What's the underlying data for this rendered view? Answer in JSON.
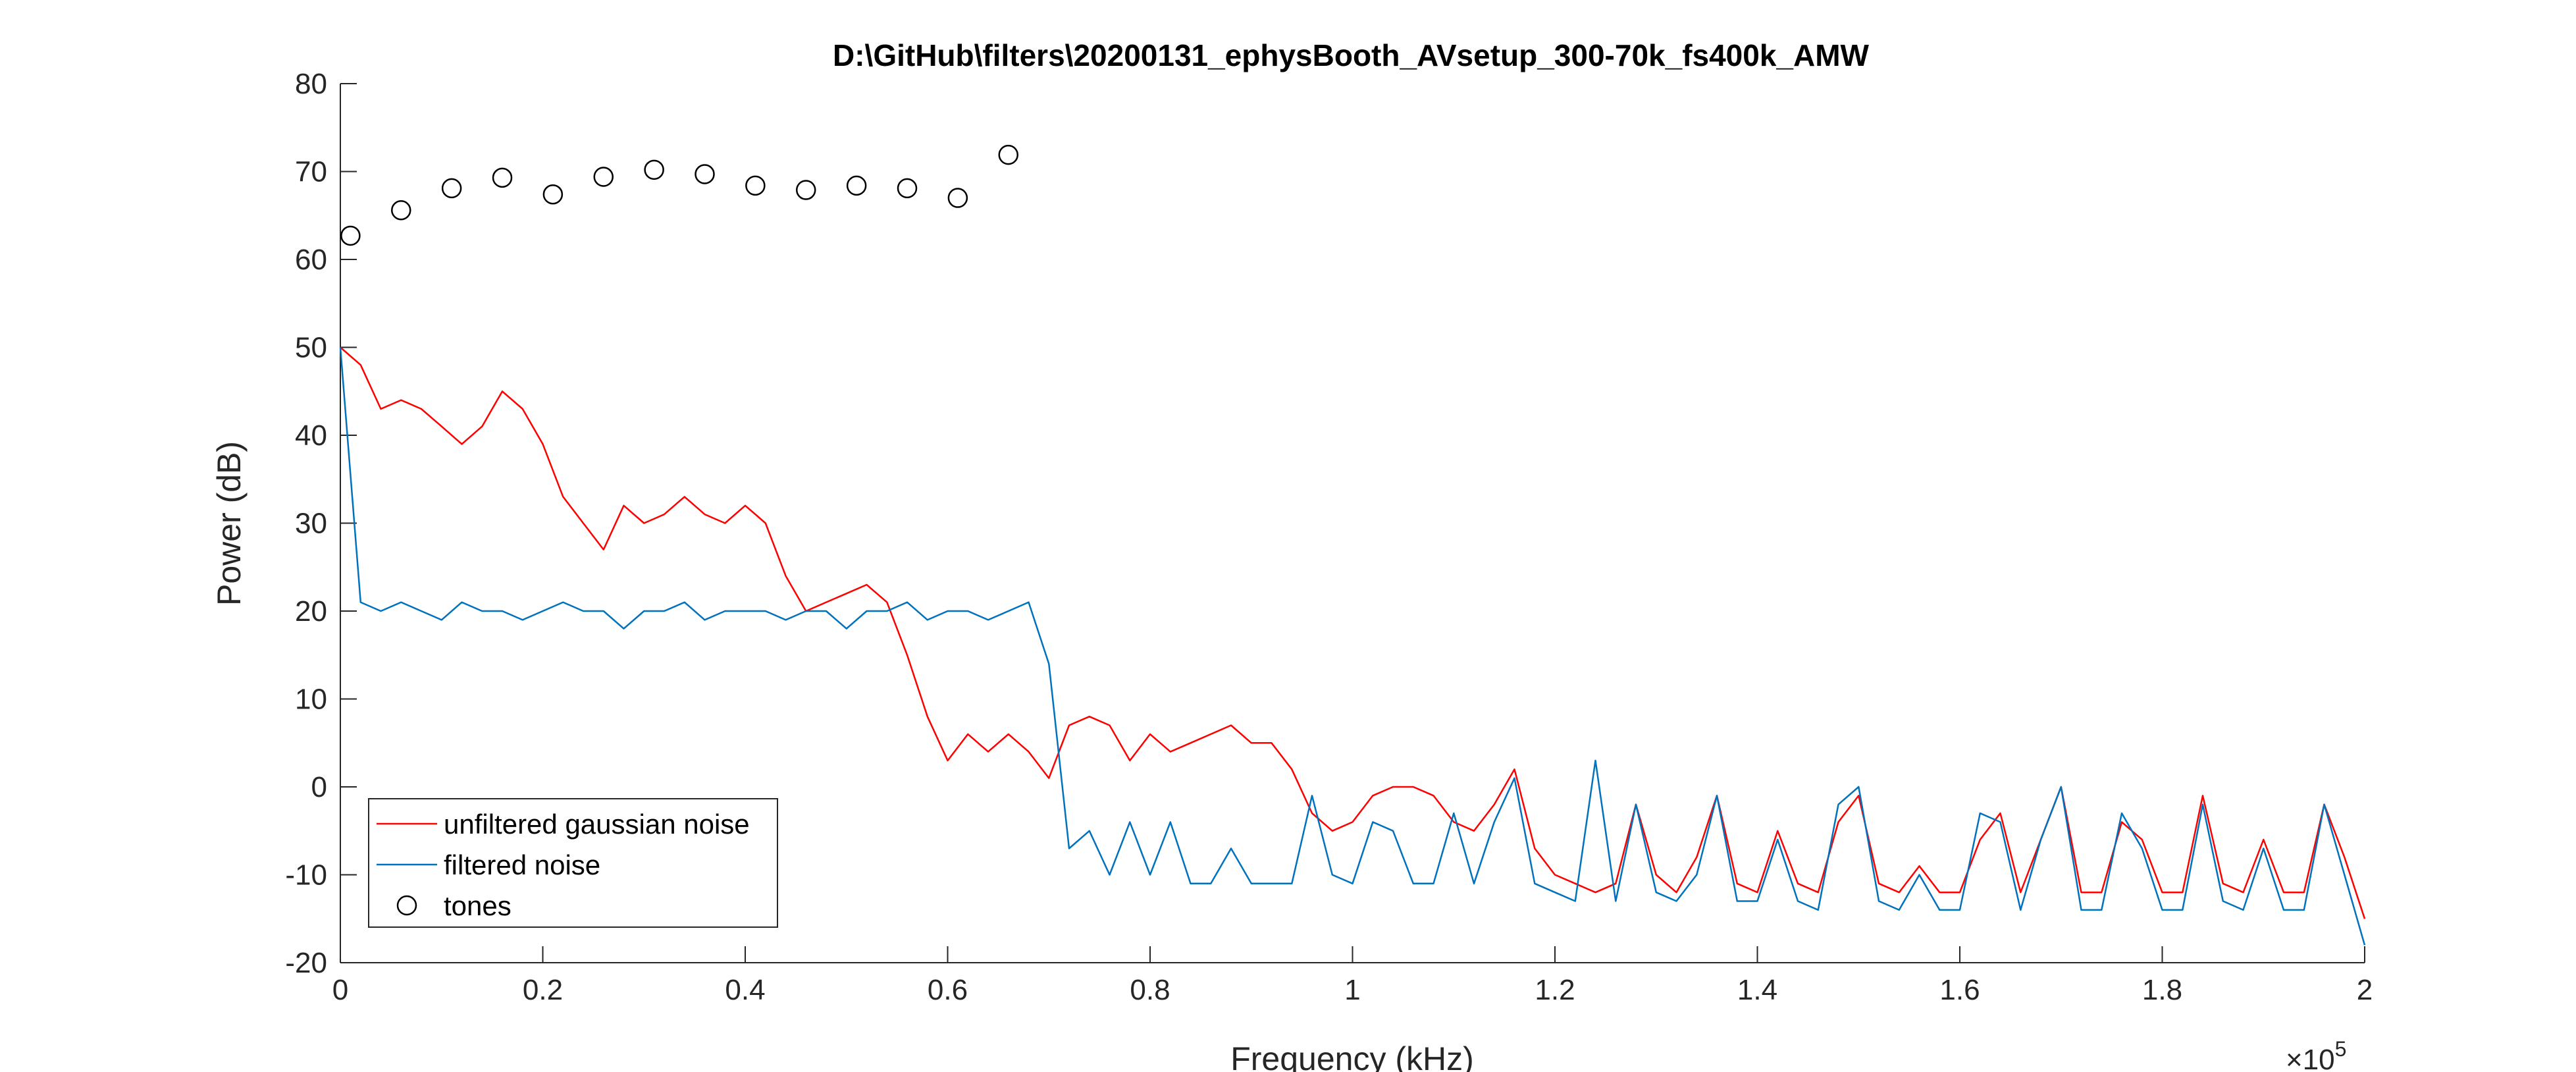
{
  "chart_data": {
    "type": "line",
    "title": "D:\\GitHub\\filters\\20200131_ephysBooth_AVsetup_300-70k_fs400k_AMW",
    "x_label": "Frequency (kHz)",
    "y_label": "Power (dB)",
    "x_exponent": {
      "base": "×10",
      "power": "5"
    },
    "xlim": [
      0,
      200000
    ],
    "ylim": [
      -20,
      80
    ],
    "xticks": [
      0,
      {
        "value": 20000,
        "label": "0.2"
      },
      {
        "value": 40000,
        "label": "0.4"
      },
      {
        "value": 60000,
        "label": "0.6"
      },
      {
        "value": 80000,
        "label": "0.8"
      },
      {
        "value": 100000,
        "label": "1"
      },
      {
        "value": 120000,
        "label": "1.2"
      },
      {
        "value": 140000,
        "label": "1.4"
      },
      {
        "value": 160000,
        "label": "1.6"
      },
      {
        "value": 180000,
        "label": "1.8"
      },
      {
        "value": 200000,
        "label": "2"
      }
    ],
    "yticks": [
      -20,
      -10,
      0,
      10,
      20,
      30,
      40,
      50,
      60,
      70,
      80
    ],
    "grid": false,
    "legend": "bottom-left",
    "series": [
      {
        "name": "unfiltered gaussian noise",
        "color": "#ff0000",
        "type": "line",
        "x": [
          0,
          2000,
          4000,
          6000,
          8000,
          10000,
          12000,
          14000,
          16000,
          18000,
          20000,
          22000,
          24000,
          26000,
          28000,
          30000,
          32000,
          34000,
          36000,
          38000,
          40000,
          42000,
          44000,
          46000,
          48000,
          50000,
          52000,
          54000,
          56000,
          58000,
          60000,
          62000,
          64000,
          66000,
          68000,
          70000,
          72000,
          74000,
          76000,
          78000,
          80000,
          82000,
          84000,
          86000,
          88000,
          90000,
          92000,
          94000,
          96000,
          98000,
          100000,
          102000,
          104000,
          106000,
          108000,
          110000,
          112000,
          114000,
          116000,
          118000,
          120000,
          122000,
          124000,
          126000,
          128000,
          130000,
          132000,
          134000,
          136000,
          138000,
          140000,
          142000,
          144000,
          146000,
          148000,
          150000,
          152000,
          154000,
          156000,
          158000,
          160000,
          162000,
          164000,
          166000,
          168000,
          170000,
          172000,
          174000,
          176000,
          178000,
          180000,
          182000,
          184000,
          186000,
          188000,
          190000,
          192000,
          194000,
          196000,
          198000,
          200000
        ],
        "values": [
          50,
          48,
          43,
          44,
          43,
          41,
          39,
          41,
          45,
          43,
          39,
          33,
          30,
          27,
          32,
          30,
          31,
          33,
          31,
          30,
          32,
          30,
          24,
          20,
          21,
          22,
          23,
          21,
          15,
          8,
          3,
          6,
          4,
          6,
          4,
          1,
          7,
          8,
          7,
          3,
          6,
          4,
          5,
          6,
          7,
          5,
          5,
          2,
          -3,
          -5,
          -4,
          -1,
          0,
          0,
          -1,
          -4,
          -5,
          -2,
          2,
          -7,
          -10,
          -11,
          -12,
          -11,
          -2,
          -10,
          -12,
          -8,
          -1,
          -11,
          -12,
          -5,
          -11,
          -12,
          -4,
          -1,
          -11,
          -12,
          -9,
          -12,
          -12,
          -6,
          -3,
          -12,
          -6,
          0,
          -12,
          -12,
          -4,
          -6,
          -12,
          -12,
          -1,
          -11,
          -12,
          -6,
          -12,
          -12,
          -2,
          -8,
          -15
        ]
      },
      {
        "name": "filtered noise",
        "color": "#0072bd",
        "type": "line",
        "x": [
          0,
          2000,
          4000,
          6000,
          8000,
          10000,
          12000,
          14000,
          16000,
          18000,
          20000,
          22000,
          24000,
          26000,
          28000,
          30000,
          32000,
          34000,
          36000,
          38000,
          40000,
          42000,
          44000,
          46000,
          48000,
          50000,
          52000,
          54000,
          56000,
          58000,
          60000,
          62000,
          64000,
          66000,
          68000,
          70000,
          72000,
          74000,
          76000,
          78000,
          80000,
          82000,
          84000,
          86000,
          88000,
          90000,
          92000,
          94000,
          96000,
          98000,
          100000,
          102000,
          104000,
          106000,
          108000,
          110000,
          112000,
          114000,
          116000,
          118000,
          120000,
          122000,
          124000,
          126000,
          128000,
          130000,
          132000,
          134000,
          136000,
          138000,
          140000,
          142000,
          144000,
          146000,
          148000,
          150000,
          152000,
          154000,
          156000,
          158000,
          160000,
          162000,
          164000,
          166000,
          168000,
          170000,
          172000,
          174000,
          176000,
          178000,
          180000,
          182000,
          184000,
          186000,
          188000,
          190000,
          192000,
          194000,
          196000,
          198000,
          200000
        ],
        "values": [
          50,
          21,
          20,
          21,
          20,
          19,
          21,
          20,
          20,
          19,
          20,
          21,
          20,
          20,
          18,
          20,
          20,
          21,
          19,
          20,
          20,
          20,
          19,
          20,
          20,
          18,
          20,
          20,
          21,
          19,
          20,
          20,
          19,
          20,
          21,
          14,
          -7,
          -5,
          -10,
          -4,
          -10,
          -4,
          -11,
          -11,
          -7,
          -11,
          -11,
          -11,
          -1,
          -10,
          -11,
          -4,
          -5,
          -11,
          -11,
          -3,
          -11,
          -4,
          1,
          -11,
          -12,
          -13,
          3,
          -13,
          -2,
          -12,
          -13,
          -10,
          -1,
          -13,
          -13,
          -6,
          -13,
          -14,
          -2,
          0,
          -13,
          -14,
          -10,
          -14,
          -14,
          -3,
          -4,
          -14,
          -6,
          0,
          -14,
          -14,
          -3,
          -7,
          -14,
          -14,
          -2,
          -13,
          -14,
          -7,
          -14,
          -14,
          -2,
          -10,
          -18
        ]
      },
      {
        "name": "tones",
        "color": "#000000",
        "type": "scatter",
        "x": [
          1000,
          6000,
          11000,
          16000,
          21000,
          26000,
          31000,
          36000,
          41000,
          46000,
          51000,
          56000,
          61000,
          66000
        ],
        "values": [
          62.7,
          65.6,
          68.1,
          69.3,
          67.4,
          69.4,
          70.2,
          69.7,
          68.4,
          67.9,
          68.4,
          68.1,
          67.0,
          71.9
        ]
      }
    ]
  }
}
